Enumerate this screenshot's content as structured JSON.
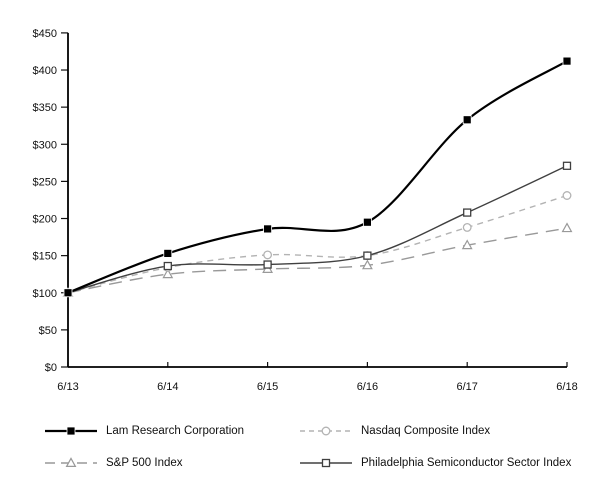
{
  "chart_data": {
    "type": "line",
    "title": "",
    "x_labels": [
      "6/13",
      "6/14",
      "6/15",
      "6/16",
      "6/17",
      "6/18"
    ],
    "y_axis": {
      "min": 0,
      "max": 450,
      "tick_step": 50,
      "tick_prefix": "$",
      "tick_labels": [
        "$0",
        "$50",
        "$100",
        "$150",
        "$200",
        "$250",
        "$300",
        "$350",
        "$400",
        "$450"
      ]
    },
    "grid": false,
    "legend_position": "bottom-two-column",
    "series": [
      {
        "name": "Lam Research Corporation",
        "marker": "filled-square",
        "line": "solid-thick",
        "color": "#000000",
        "values": [
          100,
          153,
          186,
          195,
          333,
          412
        ]
      },
      {
        "name": "Nasdaq Composite Index",
        "marker": "open-circle",
        "line": "short-dash",
        "color": "#b3b3b3",
        "values": [
          100,
          134,
          151,
          150,
          188,
          231
        ]
      },
      {
        "name": "S&P 500 Index",
        "marker": "open-triangle",
        "line": "long-dash",
        "color": "#999999",
        "values": [
          100,
          125,
          132,
          137,
          164,
          187
        ]
      },
      {
        "name": "Philadelphia Semiconductor Sector Index",
        "marker": "open-square",
        "line": "solid-thin",
        "color": "#404040",
        "values": [
          100,
          136,
          138,
          150,
          208,
          271
        ]
      }
    ]
  }
}
